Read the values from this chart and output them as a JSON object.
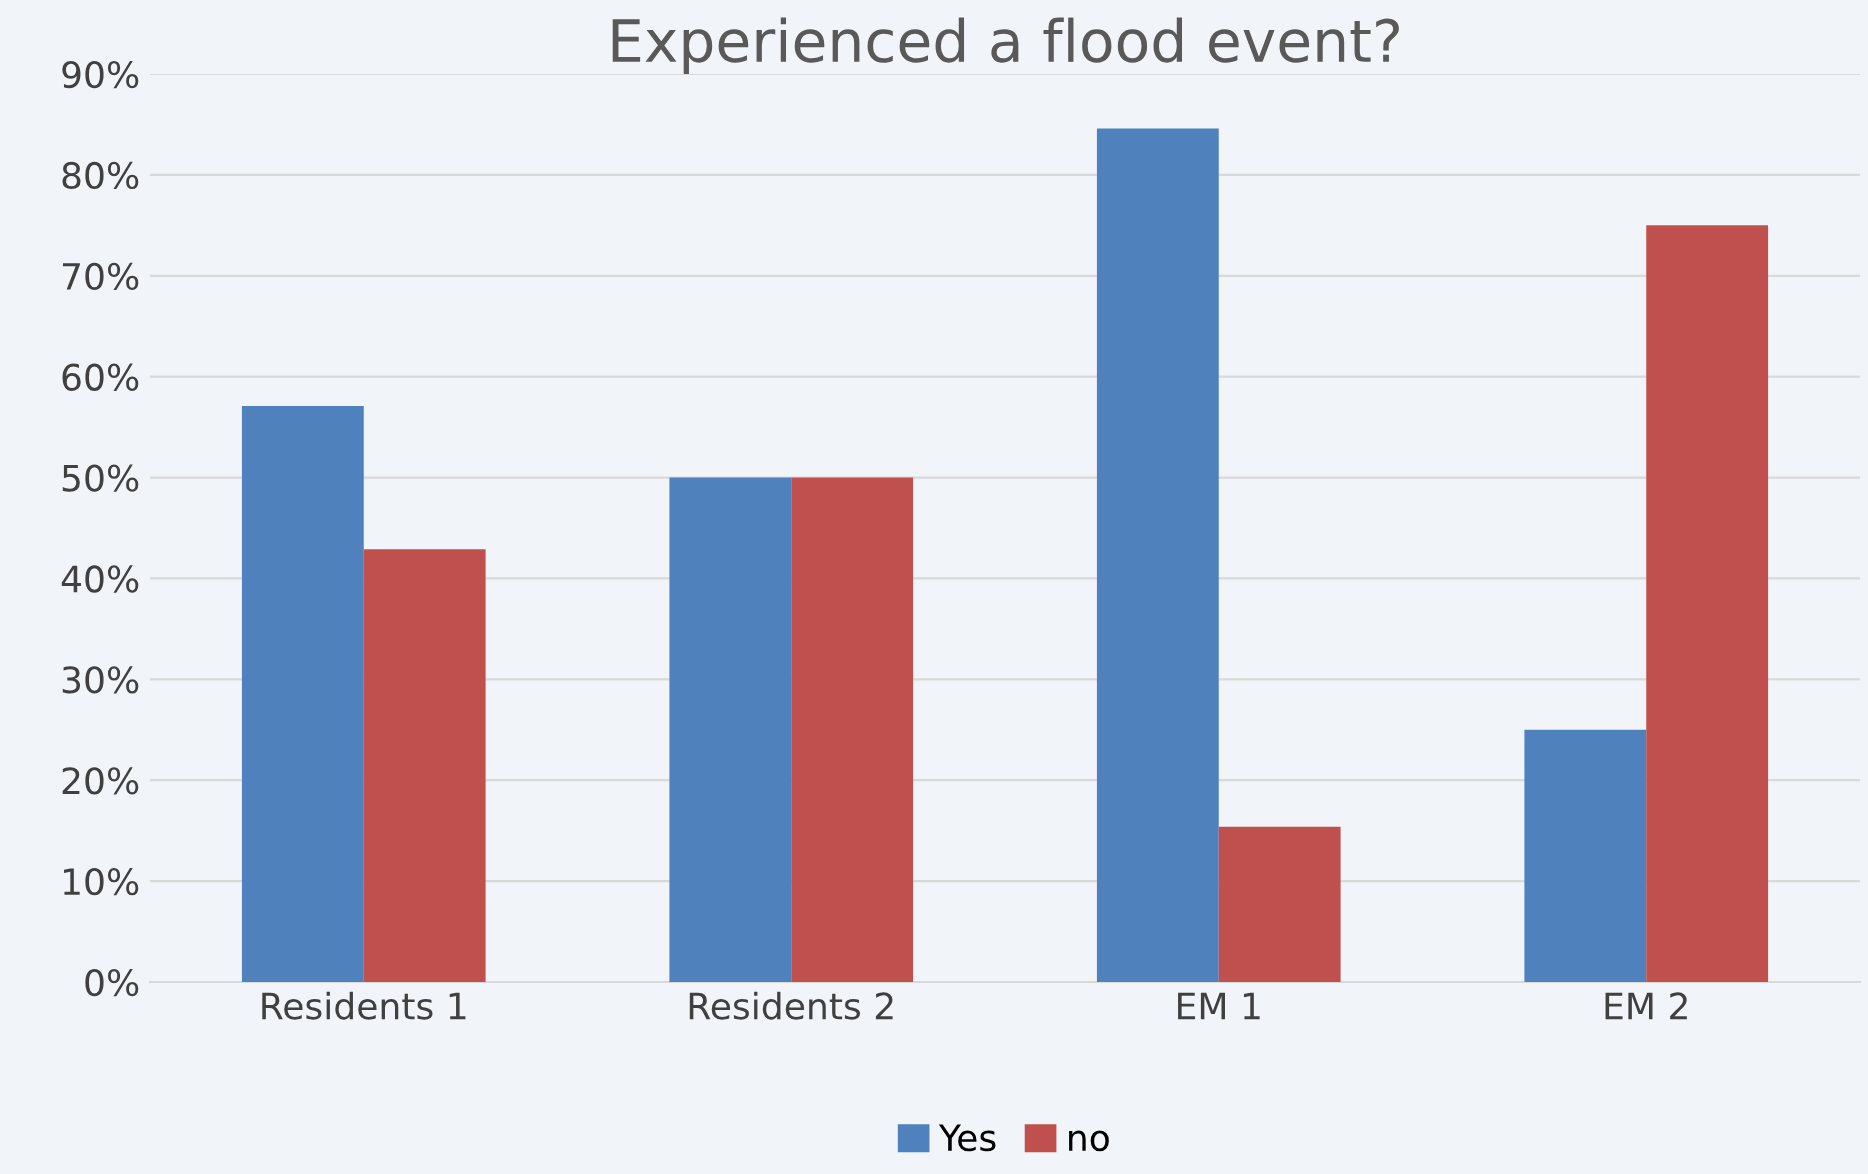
{
  "chart_data": {
    "type": "bar",
    "title": "Experienced a flood event?",
    "categories": [
      "Residents 1",
      "Residents 2",
      "EM 1",
      "EM 2"
    ],
    "series": [
      {
        "name": "Yes",
        "color": "#4f81bd",
        "values": [
          57.1,
          50,
          84.6,
          25
        ]
      },
      {
        "name": "no",
        "color": "#c0504d",
        "values": [
          42.9,
          50,
          15.4,
          75
        ]
      }
    ],
    "ylim": [
      0,
      90
    ],
    "yticks": [
      {
        "value": 0,
        "label": "0%"
      },
      {
        "value": 10,
        "label": "10%"
      },
      {
        "value": 20,
        "label": "20%"
      },
      {
        "value": 30,
        "label": "30%"
      },
      {
        "value": 40,
        "label": "40%"
      },
      {
        "value": 50,
        "label": "50%"
      },
      {
        "value": 60,
        "label": "60%"
      },
      {
        "value": 70,
        "label": "70%"
      },
      {
        "value": 80,
        "label": "80%"
      },
      {
        "value": 90,
        "label": "90%"
      }
    ],
    "grid": "y",
    "legend": "bottom"
  }
}
